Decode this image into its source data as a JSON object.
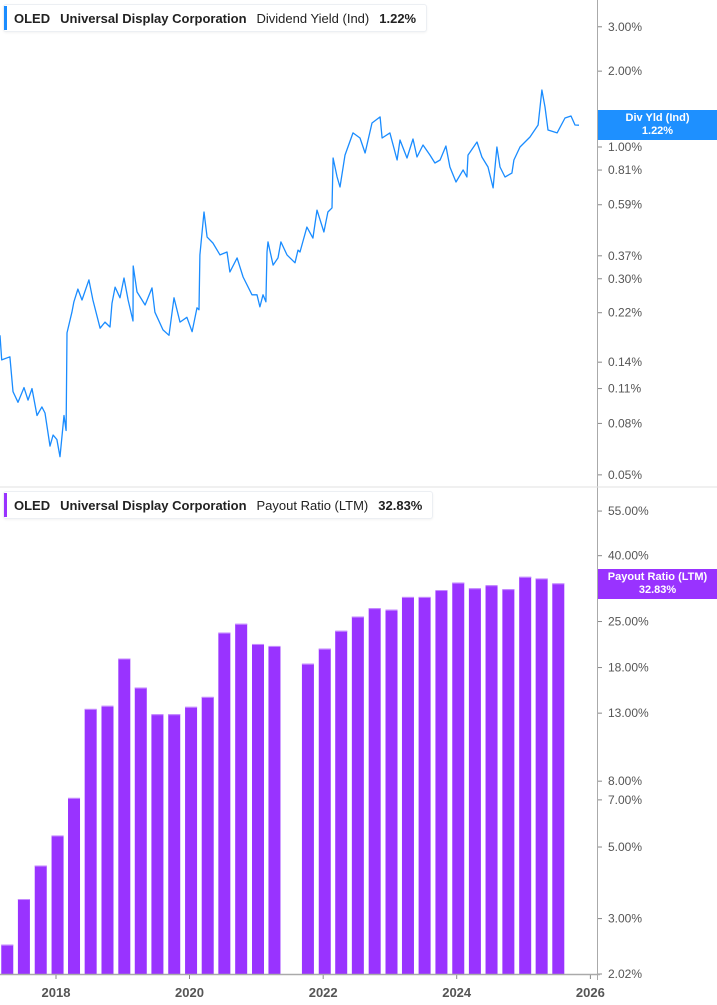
{
  "colors": {
    "yield_line": "#1a8cff",
    "payout_bars": "#9933ff",
    "badge_yield": "#1e90ff",
    "badge_payout": "#9933ff"
  },
  "top_legend": {
    "ticker": "OLED",
    "company": "Universal Display Corporation",
    "metric": "Dividend Yield (Ind)",
    "value": "1.22%"
  },
  "bottom_legend": {
    "ticker": "OLED",
    "company": "Universal Display Corporation",
    "metric": "Payout Ratio (LTM)",
    "value": "32.83%"
  },
  "top_badge": {
    "label": "Div Yld (Ind)",
    "value": "1.22%"
  },
  "bottom_badge": {
    "label": "Payout Ratio (LTM)",
    "value": "32.83%"
  },
  "chart_data": [
    {
      "type": "line",
      "title": "",
      "series_label": "Dividend Yield (Ind)",
      "y_scale": "log",
      "y_unit": "%",
      "y_ticks": [
        "3.00%",
        "2.00%",
        "1.00%",
        "0.81%",
        "0.59%",
        "0.37%",
        "0.30%",
        "0.22%",
        "0.14%",
        "0.11%",
        "0.08%",
        "0.05%"
      ],
      "y_tick_values": [
        3,
        2,
        1,
        0.81,
        0.59,
        0.37,
        0.3,
        0.22,
        0.14,
        0.11,
        0.08,
        0.05
      ],
      "points": [
        [
          "2017-03-01",
          0.179
        ],
        [
          "2017-03-10",
          0.143
        ],
        [
          "2017-04-24",
          0.147
        ],
        [
          "2017-05-11",
          0.107
        ],
        [
          "2017-06-07",
          0.097
        ],
        [
          "2017-07-10",
          0.111
        ],
        [
          "2017-08-01",
          0.099
        ],
        [
          "2017-08-23",
          0.11
        ],
        [
          "2017-09-19",
          0.086
        ],
        [
          "2017-10-16",
          0.093
        ],
        [
          "2017-11-02",
          0.088
        ],
        [
          "2017-11-29",
          0.065
        ],
        [
          "2017-12-16",
          0.072
        ],
        [
          "2018-01-06",
          0.069
        ],
        [
          "2018-01-23",
          0.059
        ],
        [
          "2018-02-14",
          0.086
        ],
        [
          "2018-02-25",
          0.075
        ],
        [
          "2018-03-02",
          0.183
        ],
        [
          "2018-03-29",
          0.221
        ],
        [
          "2018-04-09",
          0.243
        ],
        [
          "2018-05-01",
          0.273
        ],
        [
          "2018-05-23",
          0.247
        ],
        [
          "2018-06-30",
          0.297
        ],
        [
          "2018-07-22",
          0.247
        ],
        [
          "2018-08-30",
          0.191
        ],
        [
          "2018-09-26",
          0.202
        ],
        [
          "2018-10-23",
          0.193
        ],
        [
          "2018-11-03",
          0.24
        ],
        [
          "2018-11-20",
          0.278
        ],
        [
          "2018-12-17",
          0.252
        ],
        [
          "2019-01-08",
          0.302
        ],
        [
          "2019-01-30",
          0.247
        ],
        [
          "2019-02-26",
          0.204
        ],
        [
          "2019-02-27",
          0.337
        ],
        [
          "2019-03-20",
          0.266
        ],
        [
          "2019-05-03",
          0.236
        ],
        [
          "2019-06-10",
          0.276
        ],
        [
          "2019-06-26",
          0.221
        ],
        [
          "2019-08-09",
          0.188
        ],
        [
          "2019-09-11",
          0.179
        ],
        [
          "2019-10-08",
          0.252
        ],
        [
          "2019-11-10",
          0.202
        ],
        [
          "2019-12-18",
          0.211
        ],
        [
          "2020-01-15",
          0.185
        ],
        [
          "2020-02-11",
          0.23
        ],
        [
          "2020-02-22",
          0.226
        ],
        [
          "2020-02-27",
          0.373
        ],
        [
          "2020-03-20",
          0.552
        ],
        [
          "2020-04-06",
          0.439
        ],
        [
          "2020-05-08",
          0.416
        ],
        [
          "2020-06-16",
          0.373
        ],
        [
          "2020-07-24",
          0.383
        ],
        [
          "2020-08-09",
          0.319
        ],
        [
          "2020-09-17",
          0.363
        ],
        [
          "2020-10-20",
          0.305
        ],
        [
          "2020-12-08",
          0.259
        ],
        [
          "2021-01-04",
          0.259
        ],
        [
          "2021-01-20",
          0.232
        ],
        [
          "2021-02-06",
          0.259
        ],
        [
          "2021-02-22",
          0.243
        ],
        [
          "2021-02-28",
          0.383
        ],
        [
          "2021-03-05",
          0.42
        ],
        [
          "2021-04-02",
          0.34
        ],
        [
          "2021-04-29",
          0.363
        ],
        [
          "2021-05-15",
          0.42
        ],
        [
          "2021-06-17",
          0.373
        ],
        [
          "2021-07-31",
          0.347
        ],
        [
          "2021-08-16",
          0.39
        ],
        [
          "2021-08-27",
          0.383
        ],
        [
          "2021-10-04",
          0.481
        ],
        [
          "2021-11-06",
          0.435
        ],
        [
          "2021-11-28",
          0.562
        ],
        [
          "2022-01-05",
          0.46
        ],
        [
          "2022-01-27",
          0.552
        ],
        [
          "2022-02-18",
          0.573
        ],
        [
          "2022-02-24",
          0.904
        ],
        [
          "2022-03-18",
          0.76
        ],
        [
          "2022-04-03",
          0.694
        ],
        [
          "2022-04-30",
          0.929
        ],
        [
          "2022-06-13",
          1.137
        ],
        [
          "2022-07-21",
          1.086
        ],
        [
          "2022-08-18",
          0.947
        ],
        [
          "2022-09-25",
          1.245
        ],
        [
          "2022-11-08",
          1.316
        ],
        [
          "2022-11-19",
          1.086
        ],
        [
          "2023-01-01",
          1.137
        ],
        [
          "2023-02-09",
          0.888
        ],
        [
          "2023-02-25",
          1.066
        ],
        [
          "2023-04-04",
          0.904
        ],
        [
          "2023-05-07",
          1.076
        ],
        [
          "2023-05-29",
          0.913
        ],
        [
          "2023-07-01",
          1.018
        ],
        [
          "2023-08-08",
          0.929
        ],
        [
          "2023-09-04",
          0.864
        ],
        [
          "2023-10-02",
          0.888
        ],
        [
          "2023-11-03",
          1.009
        ],
        [
          "2023-11-25",
          0.833
        ],
        [
          "2023-12-28",
          0.726
        ],
        [
          "2024-02-05",
          0.811
        ],
        [
          "2024-02-26",
          0.76
        ],
        [
          "2024-03-03",
          0.929
        ],
        [
          "2024-04-21",
          1.047
        ],
        [
          "2024-05-18",
          0.913
        ],
        [
          "2024-06-20",
          0.833
        ],
        [
          "2024-07-18",
          0.688
        ],
        [
          "2024-08-08",
          1.0
        ],
        [
          "2024-08-25",
          0.833
        ],
        [
          "2024-09-21",
          0.76
        ],
        [
          "2024-10-29",
          0.788
        ],
        [
          "2024-11-09",
          0.888
        ],
        [
          "2024-12-12",
          1.0
        ],
        [
          "2025-02-05",
          1.096
        ],
        [
          "2025-03-21",
          1.223
        ],
        [
          "2025-04-11",
          1.684
        ],
        [
          "2025-04-28",
          1.441
        ],
        [
          "2025-05-14",
          1.168
        ],
        [
          "2025-07-03",
          1.137
        ],
        [
          "2025-08-15",
          1.303
        ],
        [
          "2025-09-17",
          1.327
        ],
        [
          "2025-10-09",
          1.223
        ],
        [
          "2025-10-31",
          1.22
        ]
      ]
    },
    {
      "type": "bar",
      "title": "",
      "series_label": "Payout Ratio (LTM)",
      "y_scale": "log",
      "y_unit": "%",
      "y_ticks": [
        "55.00%",
        "40.00%",
        "25.00%",
        "18.00%",
        "13.00%",
        "8.00%",
        "7.00%",
        "5.00%",
        "3.00%",
        "2.02%"
      ],
      "y_tick_values": [
        55,
        40,
        25,
        18,
        13,
        8,
        7,
        5,
        3,
        2.02
      ],
      "x_ticks": [
        "2018",
        "2020",
        "2022",
        "2024",
        "2026"
      ],
      "categories": [
        "2017-04",
        "2017-07",
        "2017-10",
        "2018-01",
        "2018-04",
        "2018-07",
        "2018-10",
        "2019-01",
        "2019-04",
        "2019-07",
        "2019-10",
        "2020-01",
        "2020-04",
        "2020-07",
        "2020-10",
        "2021-01",
        "2021-04",
        "2021-10",
        "2022-01",
        "2022-04",
        "2022-07",
        "2022-10",
        "2023-01",
        "2023-04",
        "2023-07",
        "2023-10",
        "2024-01",
        "2024-04",
        "2024-07",
        "2024-10",
        "2025-01",
        "2025-04",
        "2025-07"
      ],
      "values": [
        2.49,
        3.45,
        4.38,
        5.43,
        7.1,
        13.4,
        13.7,
        19.2,
        15.6,
        12.9,
        12.9,
        13.6,
        14.6,
        23.1,
        24.6,
        21.3,
        21.0,
        18.5,
        20.6,
        23.4,
        25.9,
        27.5,
        27.2,
        29.8,
        29.8,
        31.3,
        33.0,
        31.7,
        32.4,
        31.5,
        34.4,
        34.0,
        32.83
      ]
    }
  ]
}
